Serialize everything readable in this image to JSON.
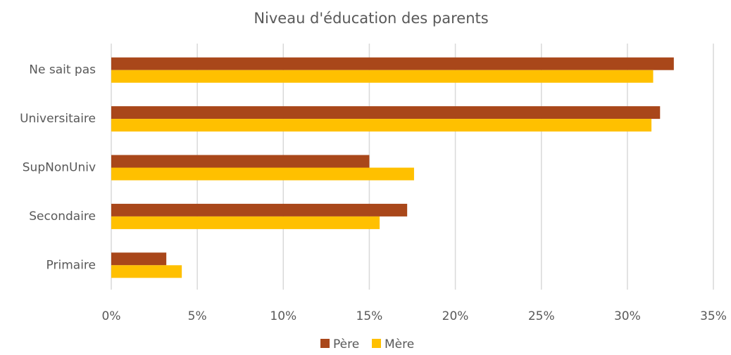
{
  "chart_data": {
    "type": "bar",
    "orientation": "horizontal",
    "title": "Niveau d'éducation des parents",
    "categories": [
      "Ne sait pas",
      "Universitaire",
      "SupNonUniv",
      "Secondaire",
      "Primaire"
    ],
    "series": [
      {
        "name": "Père",
        "color": "#a9471a",
        "values": [
          32.7,
          31.9,
          15.0,
          17.2,
          3.2
        ]
      },
      {
        "name": "Mère",
        "color": "#ffc000",
        "values": [
          31.5,
          31.4,
          17.6,
          15.6,
          4.1
        ]
      }
    ],
    "xlim": [
      0,
      35
    ],
    "xticks": [
      {
        "value": 0,
        "label": "0%"
      },
      {
        "value": 5,
        "label": "5%"
      },
      {
        "value": 10,
        "label": "10%"
      },
      {
        "value": 15,
        "label": "15%"
      },
      {
        "value": 20,
        "label": "20%"
      },
      {
        "value": 25,
        "label": "25%"
      },
      {
        "value": 30,
        "label": "30%"
      },
      {
        "value": 35,
        "label": "35%"
      }
    ],
    "grid": true,
    "legend": "bottom"
  }
}
